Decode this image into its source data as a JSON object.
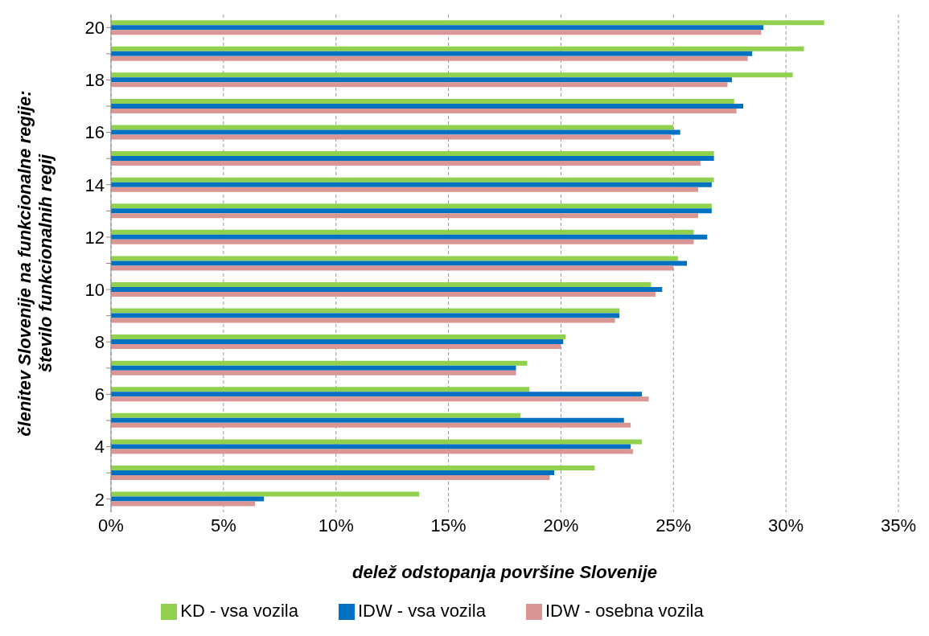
{
  "chart_data": {
    "type": "bar",
    "orientation": "horizontal",
    "xlabel": "delež odstopanja površine Slovenije",
    "ylabel": "členitev Slovenije na funkcionalne regije:\nštevilo funkcionalnih regij",
    "categories": [
      "20",
      null,
      "18",
      null,
      "16",
      null,
      "14",
      null,
      "12",
      null,
      "10",
      null,
      "8",
      null,
      "6",
      null,
      "4",
      null,
      "2"
    ],
    "series": [
      {
        "name": "KD - vsa vozila",
        "color": "#92d050",
        "values": [
          31.7,
          30.8,
          30.3,
          27.7,
          25.0,
          26.8,
          26.8,
          26.7,
          25.9,
          25.2,
          24.0,
          22.6,
          20.2,
          18.5,
          18.6,
          18.2,
          23.6,
          21.5,
          13.7
        ]
      },
      {
        "name": "IDW - vsa vozila",
        "color": "#0070c0",
        "values": [
          29.0,
          28.5,
          27.6,
          28.1,
          25.3,
          26.8,
          26.7,
          26.7,
          26.5,
          25.6,
          24.5,
          22.6,
          20.1,
          18.0,
          23.6,
          22.8,
          23.1,
          19.7,
          6.8
        ]
      },
      {
        "name": "IDW - osebna vozila",
        "color": "#d99694",
        "values": [
          28.9,
          28.3,
          27.4,
          27.8,
          24.9,
          26.2,
          26.1,
          26.1,
          25.9,
          25.0,
          24.2,
          22.4,
          20.0,
          18.0,
          23.9,
          23.1,
          23.2,
          19.5,
          6.4
        ]
      }
    ],
    "xlim": [
      0,
      35
    ],
    "xticks": [
      {
        "value": 0,
        "label": "0%"
      },
      {
        "value": 5,
        "label": "5%"
      },
      {
        "value": 10,
        "label": "10%"
      },
      {
        "value": 15,
        "label": "15%"
      },
      {
        "value": 20,
        "label": "20%"
      },
      {
        "value": 25,
        "label": "25%"
      },
      {
        "value": 30,
        "label": "30%"
      },
      {
        "value": 35,
        "label": "35%"
      }
    ],
    "grid": "x",
    "legend": "bottom"
  }
}
